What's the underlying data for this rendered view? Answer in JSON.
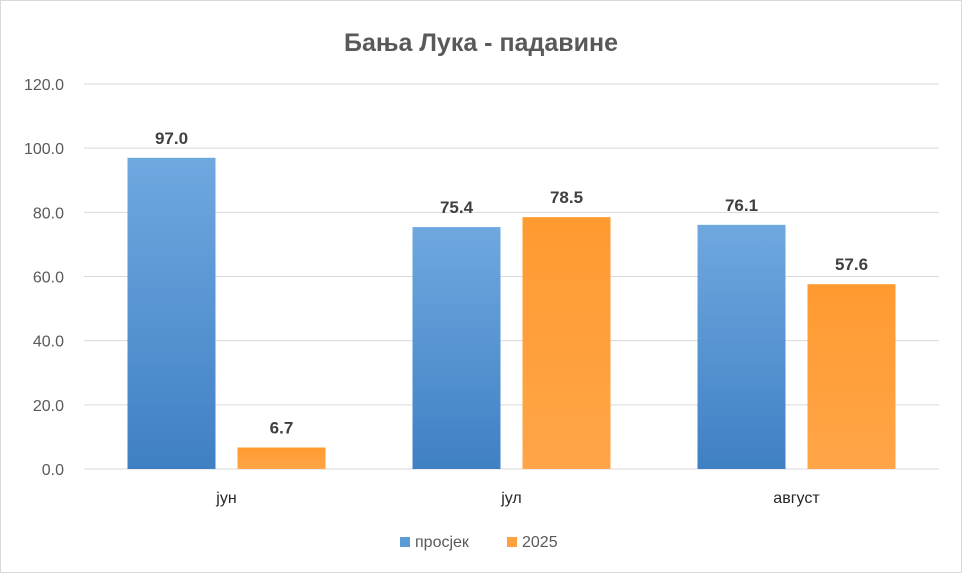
{
  "chart_data": {
    "type": "bar",
    "title": "Бања Лука - падавине",
    "categories": [
      "јун",
      "јул",
      "август"
    ],
    "series": [
      {
        "name": "просјек",
        "values": [
          97.0,
          75.4,
          76.1
        ],
        "color": "#5b9bd5"
      },
      {
        "name": "2025",
        "values": [
          6.7,
          78.5,
          57.6
        ],
        "color": "#ffa040"
      }
    ],
    "ylim": [
      0,
      120
    ],
    "yticks": [
      "0.0",
      "20.0",
      "40.0",
      "60.0",
      "80.0",
      "100.0",
      "120.0"
    ],
    "grid": true,
    "legend": "bottom",
    "data_labels": true
  }
}
